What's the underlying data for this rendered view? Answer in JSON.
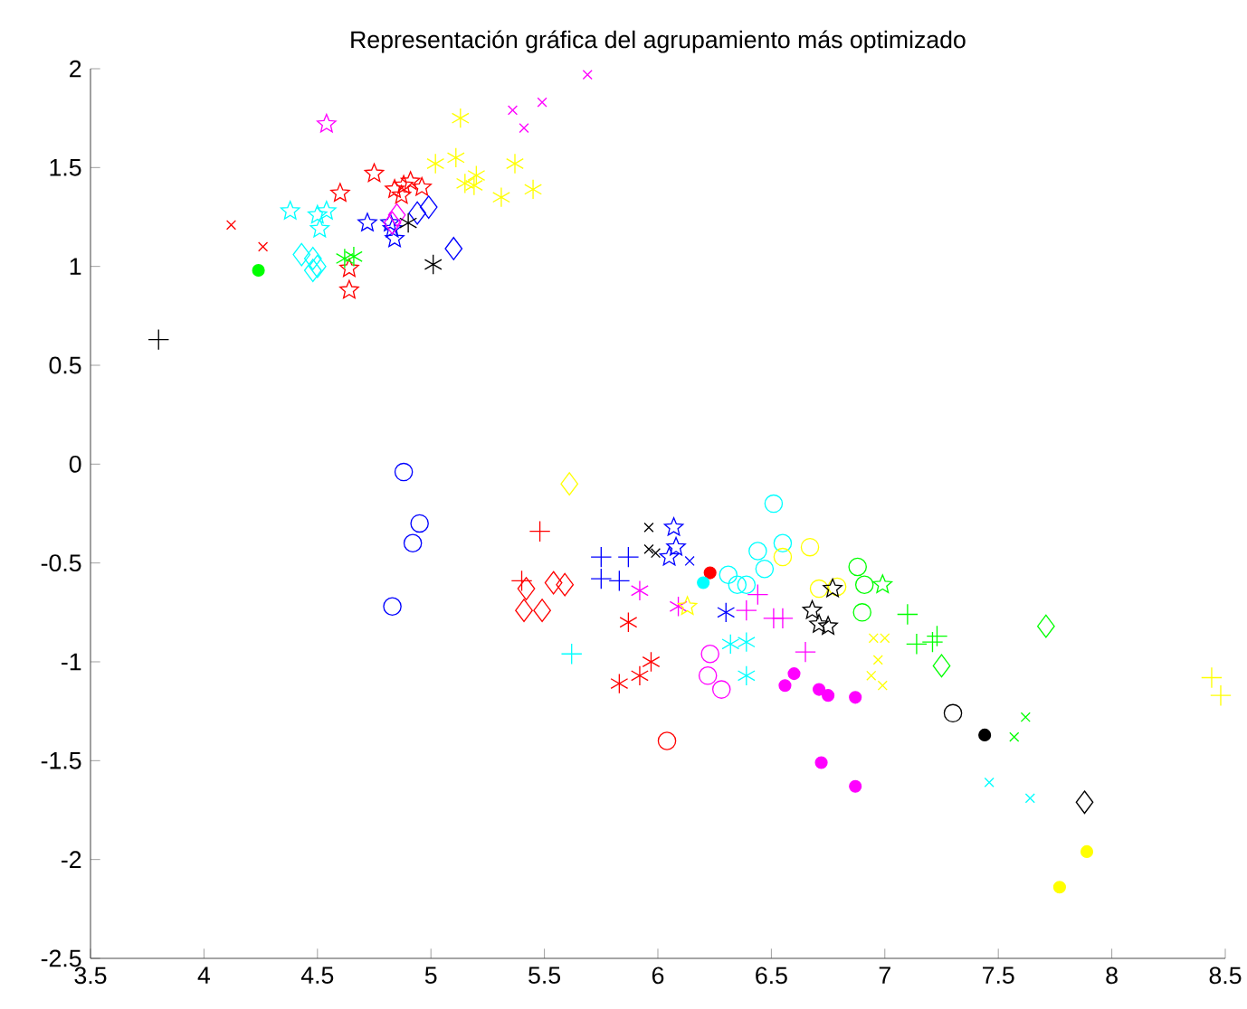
{
  "chart_data": {
    "type": "scatter",
    "title": "Representación gráfica del agrupamiento más optimizado",
    "xlim": [
      3.5,
      8.5
    ],
    "ylim": [
      -2.5,
      2
    ],
    "xticks": [
      3.5,
      4,
      4.5,
      5,
      5.5,
      6,
      6.5,
      7,
      7.5,
      8,
      8.5
    ],
    "yticks": [
      -2.5,
      -2,
      -1.5,
      -1,
      -0.5,
      0,
      0.5,
      1,
      1.5,
      2
    ],
    "grid": false,
    "series": [
      {
        "type": "scatter",
        "marker": "cross",
        "color": "#ff0000",
        "x": [
          4.12,
          4.26
        ],
        "values": [
          1.21,
          1.1
        ]
      },
      {
        "type": "scatter",
        "marker": "filled_circle",
        "color": "#00ff00",
        "x": [
          4.24
        ],
        "values": [
          0.98
        ]
      },
      {
        "type": "scatter",
        "marker": "plus",
        "color": "#000000",
        "x": [
          3.8
        ],
        "values": [
          0.63
        ]
      },
      {
        "type": "scatter",
        "marker": "star",
        "color": "#ff00ff",
        "x": [
          4.54
        ],
        "values": [
          1.72
        ]
      },
      {
        "type": "scatter",
        "marker": "star",
        "color": "#ff0000",
        "x": [
          4.6,
          4.75,
          4.84,
          4.88,
          4.91,
          4.96,
          4.87,
          4.64,
          4.64
        ],
        "values": [
          1.37,
          1.47,
          1.39,
          1.41,
          1.43,
          1.4,
          1.36,
          0.99,
          0.88
        ]
      },
      {
        "type": "scatter",
        "marker": "star",
        "color": "#00ffff",
        "x": [
          4.38,
          4.5,
          4.54,
          4.51
        ],
        "values": [
          1.28,
          1.26,
          1.28,
          1.19
        ]
      },
      {
        "type": "scatter",
        "marker": "diamond",
        "color": "#00ffff",
        "x": [
          4.43,
          4.48,
          4.5,
          4.48
        ],
        "values": [
          1.06,
          1.04,
          1.0,
          0.98
        ]
      },
      {
        "color": "#00ff00",
        "x": [
          4.62,
          4.66
        ],
        "values": [
          1.04,
          1.05
        ]
      },
      {
        "type": "scatter",
        "marker": "star",
        "color": "#0000ff",
        "x": [
          4.72,
          4.83,
          4.84,
          4.82,
          6.07,
          6.08,
          6.05
        ],
        "values": [
          1.22,
          1.19,
          1.14,
          1.22,
          -0.32,
          -0.42,
          -0.47
        ]
      },
      {
        "type": "scatter",
        "marker": "diamond",
        "color": "#0000ff",
        "x": [
          4.99,
          4.94,
          5.1
        ],
        "values": [
          1.3,
          1.27,
          1.09
        ]
      },
      {
        "type": "scatter",
        "marker": "diamond",
        "color": "#ff00ff",
        "x": [
          4.85,
          4.83
        ],
        "values": [
          1.26,
          1.22
        ]
      },
      {
        "color": "#000000",
        "x": [
          4.9,
          5.01
        ],
        "values": [
          1.22,
          1.01
        ]
      },
      {
        "color": "#ffff00",
        "x": [
          5.13,
          5.11,
          5.02,
          5.2,
          5.15,
          5.19,
          5.31,
          5.37,
          5.45
        ],
        "values": [
          1.75,
          1.55,
          1.52,
          1.46,
          1.42,
          1.41,
          1.35,
          1.52,
          1.39
        ]
      },
      {
        "type": "scatter",
        "marker": "cross",
        "color": "#ff00ff",
        "x": [
          5.69,
          5.49,
          5.36,
          5.41
        ],
        "values": [
          1.97,
          1.83,
          1.79,
          1.7
        ]
      },
      {
        "type": "scatter",
        "marker": "circle",
        "color": "#0000ff",
        "x": [
          4.88,
          4.95,
          4.92,
          4.83
        ],
        "values": [
          -0.04,
          -0.3,
          -0.4,
          -0.72
        ]
      },
      {
        "type": "scatter",
        "marker": "diamond",
        "color": "#ffff00",
        "x": [
          5.61
        ],
        "values": [
          -0.1
        ]
      },
      {
        "type": "scatter",
        "marker": "plus",
        "color": "#ff0000",
        "x": [
          5.48,
          5.4
        ],
        "values": [
          -0.34,
          -0.59
        ]
      },
      {
        "type": "scatter",
        "marker": "diamond",
        "color": "#ff0000",
        "x": [
          5.42,
          5.41,
          5.49,
          5.54,
          5.59
        ],
        "values": [
          -0.63,
          -0.74,
          -0.74,
          -0.6,
          -0.61
        ]
      },
      {
        "type": "scatter",
        "marker": "cross",
        "color": "#000000",
        "x": [
          5.96,
          5.96,
          5.99
        ],
        "values": [
          -0.32,
          -0.43,
          -0.45
        ]
      },
      {
        "type": "scatter",
        "marker": "cross",
        "color": "#0000ff",
        "x": [
          6.14
        ],
        "values": [
          -0.49
        ]
      },
      {
        "type": "scatter",
        "marker": "plus",
        "color": "#0000ff",
        "x": [
          5.75,
          5.87,
          5.75,
          5.83
        ],
        "values": [
          -0.47,
          -0.47,
          -0.58,
          -0.59
        ]
      },
      {
        "type": "scatter",
        "marker": "filled_circle",
        "color": "#ff0000",
        "x": [
          6.23
        ],
        "values": [
          -0.55
        ]
      },
      {
        "type": "scatter",
        "marker": "filled_circle",
        "color": "#00ffff",
        "x": [
          6.2
        ],
        "values": [
          -0.6
        ]
      },
      {
        "color": "#ff00ff",
        "x": [
          5.92,
          6.09
        ],
        "values": [
          -0.64,
          -0.72
        ]
      },
      {
        "type": "scatter",
        "marker": "star",
        "color": "#ffff00",
        "x": [
          6.13
        ],
        "values": [
          -0.72
        ]
      },
      {
        "color": "#ff0000",
        "x": [
          5.87,
          5.97,
          5.92,
          5.83
        ],
        "values": [
          -0.8,
          -1.0,
          -1.07,
          -1.11
        ]
      },
      {
        "type": "scatter",
        "marker": "plus",
        "color": "#00ffff",
        "x": [
          5.62
        ],
        "values": [
          -0.96
        ]
      },
      {
        "type": "scatter",
        "marker": "circle",
        "color": "#ff0000",
        "x": [
          6.04
        ],
        "values": [
          -1.4
        ]
      },
      {
        "type": "scatter",
        "marker": "circle",
        "color": "#ff00ff",
        "x": [
          6.23,
          6.22,
          6.28
        ],
        "values": [
          -0.96,
          -1.07,
          -1.14
        ]
      },
      {
        "color": "#0000ff",
        "x": [
          6.3
        ],
        "values": [
          -0.75
        ]
      },
      {
        "type": "scatter",
        "marker": "circle",
        "color": "#00ffff",
        "x": [
          6.51,
          6.44,
          6.55,
          6.47,
          6.31,
          6.35,
          6.39
        ],
        "values": [
          -0.2,
          -0.44,
          -0.4,
          -0.53,
          -0.56,
          -0.61,
          -0.61
        ]
      },
      {
        "type": "scatter",
        "marker": "circle",
        "color": "#ffff00",
        "x": [
          6.67,
          6.55,
          6.71,
          6.79
        ],
        "values": [
          -0.42,
          -0.47,
          -0.63,
          -0.62
        ]
      },
      {
        "type": "scatter",
        "marker": "star",
        "color": "#000000",
        "x": [
          6.77,
          6.68,
          6.71,
          6.75
        ],
        "values": [
          -0.63,
          -0.74,
          -0.81,
          -0.82
        ]
      },
      {
        "type": "scatter",
        "marker": "circle",
        "color": "#00ff00",
        "x": [
          6.88,
          6.91,
          6.9
        ],
        "values": [
          -0.52,
          -0.61,
          -0.75
        ]
      },
      {
        "type": "scatter",
        "marker": "star",
        "color": "#00ff00",
        "x": [
          6.99
        ],
        "values": [
          -0.61
        ]
      },
      {
        "type": "scatter",
        "marker": "plus",
        "color": "#ff00ff",
        "x": [
          6.44,
          6.39,
          6.51,
          6.55,
          6.65
        ],
        "values": [
          -0.66,
          -0.74,
          -0.78,
          -0.78,
          -0.95
        ]
      },
      {
        "color": "#00ffff",
        "x": [
          6.32,
          6.39,
          6.39
        ],
        "values": [
          -0.91,
          -0.9,
          -1.07
        ]
      },
      {
        "type": "scatter",
        "marker": "filled_circle",
        "color": "#ff00ff",
        "x": [
          6.6,
          6.56,
          6.71,
          6.75,
          6.87,
          6.72,
          6.87
        ],
        "values": [
          -1.06,
          -1.12,
          -1.14,
          -1.17,
          -1.18,
          -1.51,
          -1.63
        ]
      },
      {
        "type": "scatter",
        "marker": "cross",
        "color": "#ffff00",
        "x": [
          6.95,
          7.0,
          6.97,
          6.94,
          6.99
        ],
        "values": [
          -0.88,
          -0.88,
          -0.99,
          -1.07,
          -1.12
        ]
      },
      {
        "type": "scatter",
        "marker": "plus",
        "color": "#00ff00",
        "x": [
          7.1,
          7.14,
          7.21,
          7.23
        ],
        "values": [
          -0.76,
          -0.91,
          -0.9,
          -0.87
        ]
      },
      {
        "type": "scatter",
        "marker": "diamond",
        "color": "#00ff00",
        "x": [
          7.71,
          7.25
        ],
        "values": [
          -0.82,
          -1.02
        ]
      },
      {
        "type": "scatter",
        "marker": "plus",
        "color": "#ffff00",
        "x": [
          8.44,
          8.48
        ],
        "values": [
          -1.08,
          -1.17
        ]
      },
      {
        "type": "scatter",
        "marker": "circle",
        "color": "#000000",
        "x": [
          7.3
        ],
        "values": [
          -1.26
        ]
      },
      {
        "type": "scatter",
        "marker": "filled_circle",
        "color": "#000000",
        "x": [
          7.44
        ],
        "values": [
          -1.37
        ]
      },
      {
        "type": "scatter",
        "marker": "cross",
        "color": "#00ff00",
        "x": [
          7.62,
          7.57
        ],
        "values": [
          -1.28,
          -1.38
        ]
      },
      {
        "type": "scatter",
        "marker": "cross",
        "color": "#00ffff",
        "x": [
          7.46,
          7.64
        ],
        "values": [
          -1.61,
          -1.69
        ]
      },
      {
        "type": "scatter",
        "marker": "diamond",
        "color": "#000000",
        "x": [
          7.88
        ],
        "values": [
          -1.71
        ]
      },
      {
        "type": "scatter",
        "marker": "filled_circle",
        "color": "#ffff00",
        "x": [
          7.89,
          7.77
        ],
        "values": [
          -1.96,
          -2.14
        ]
      }
    ]
  }
}
